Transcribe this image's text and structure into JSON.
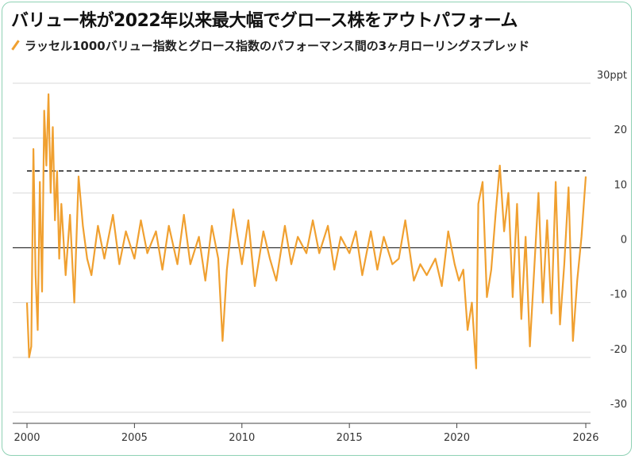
{
  "title": "バリュー株が2022年以来最大幅でグロース株をアウトパフォーム",
  "legend": {
    "label": "ラッセル1000バリュー指数とグロース指数のパフォーマンス間の3ヶ月ローリングスプレッド",
    "color": "#f0a030"
  },
  "chart_data": {
    "type": "line",
    "title": "バリュー株が2022年以来最大幅でグロース株をアウトパフォーム",
    "ylabel": "",
    "xlabel": "",
    "ylim": [
      -30,
      30
    ],
    "xlim": [
      2000,
      2026
    ],
    "y_ticks": [
      30,
      20,
      10,
      0,
      -10,
      -20,
      -30
    ],
    "y_tick_labels": [
      "30ppt",
      "20",
      "10",
      "0",
      "-10",
      "-20",
      "-30"
    ],
    "x_ticks": [
      2000,
      2005,
      2010,
      2015,
      2020,
      2026
    ],
    "x_tick_labels": [
      "2000",
      "2005",
      "2010",
      "2015",
      "2020",
      "2026"
    ],
    "reference_line": 14,
    "grid": "horizontal",
    "series": [
      {
        "name": "ラッセル1000バリュー指数とグロース指数のパフォーマンス間の3ヶ月ローリングスプレッド",
        "color": "#f0a030",
        "x": [
          2000.0,
          2000.1,
          2000.2,
          2000.3,
          2000.4,
          2000.5,
          2000.6,
          2000.7,
          2000.8,
          2000.9,
          2001.0,
          2001.1,
          2001.2,
          2001.3,
          2001.4,
          2001.5,
          2001.6,
          2001.8,
          2002.0,
          2002.2,
          2002.4,
          2002.6,
          2002.8,
          2003.0,
          2003.3,
          2003.6,
          2004.0,
          2004.3,
          2004.6,
          2005.0,
          2005.3,
          2005.6,
          2006.0,
          2006.3,
          2006.6,
          2007.0,
          2007.3,
          2007.6,
          2008.0,
          2008.3,
          2008.6,
          2008.9,
          2009.1,
          2009.3,
          2009.6,
          2010.0,
          2010.3,
          2010.6,
          2011.0,
          2011.3,
          2011.6,
          2012.0,
          2012.3,
          2012.6,
          2013.0,
          2013.3,
          2013.6,
          2014.0,
          2014.3,
          2014.6,
          2015.0,
          2015.3,
          2015.6,
          2016.0,
          2016.3,
          2016.6,
          2017.0,
          2017.3,
          2017.6,
          2018.0,
          2018.3,
          2018.6,
          2019.0,
          2019.3,
          2019.6,
          2019.9,
          2020.1,
          2020.3,
          2020.5,
          2020.7,
          2020.9,
          2021.0,
          2021.2,
          2021.4,
          2021.6,
          2021.8,
          2022.0,
          2022.2,
          2022.4,
          2022.6,
          2022.8,
          2023.0,
          2023.2,
          2023.4,
          2023.6,
          2023.8,
          2024.0,
          2024.2,
          2024.4,
          2024.6,
          2024.8,
          2025.0,
          2025.2,
          2025.4,
          2025.6,
          2025.8,
          2026.0
        ],
        "values": [
          -10,
          -20,
          -18,
          18,
          -5,
          -15,
          12,
          -8,
          25,
          15,
          28,
          10,
          22,
          5,
          14,
          -2,
          8,
          -5,
          6,
          -10,
          13,
          4,
          -2,
          -5,
          4,
          -2,
          6,
          -3,
          3,
          -2,
          5,
          -1,
          3,
          -4,
          4,
          -3,
          6,
          -3,
          2,
          -6,
          4,
          -2,
          -17,
          -4,
          7,
          -3,
          5,
          -7,
          3,
          -2,
          -6,
          4,
          -3,
          2,
          -1,
          5,
          -1,
          4,
          -4,
          2,
          -1,
          3,
          -5,
          3,
          -4,
          2,
          -3,
          -2,
          5,
          -6,
          -3,
          -5,
          -2,
          -7,
          3,
          -3,
          -6,
          -4,
          -15,
          -10,
          -22,
          8,
          12,
          -9,
          -4,
          6,
          15,
          3,
          10,
          -9,
          8,
          -13,
          2,
          -18,
          -4,
          10,
          -10,
          5,
          -12,
          12,
          -14,
          -3,
          11,
          -17,
          -6,
          2,
          13
        ]
      }
    ]
  }
}
